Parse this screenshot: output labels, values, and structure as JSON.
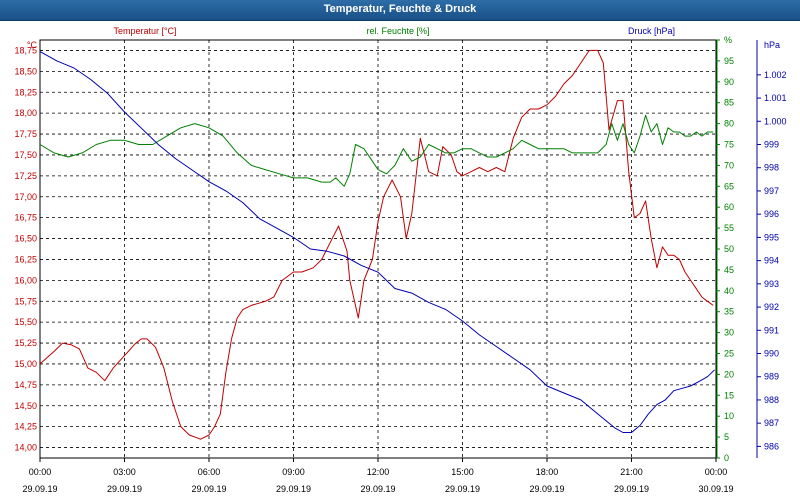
{
  "window": {
    "title": "Temperatur, Feuchte & Druck"
  },
  "chart_data": {
    "type": "line",
    "title": "Temperatur, Feuchte & Druck",
    "grid": true,
    "x": {
      "ticks": [
        {
          "time": "00:00",
          "date": "29.09.19"
        },
        {
          "time": "03:00",
          "date": "29.09.19"
        },
        {
          "time": "06:00",
          "date": "29.09.19"
        },
        {
          "time": "09:00",
          "date": "29.09.19"
        },
        {
          "time": "12:00",
          "date": "29.09.19"
        },
        {
          "time": "15:00",
          "date": "29.09.19"
        },
        {
          "time": "18:00",
          "date": "29.09.19"
        },
        {
          "time": "21:00",
          "date": "29.09.19"
        },
        {
          "time": "00:00",
          "date": "30.09.19"
        }
      ],
      "range_hours": [
        0,
        24
      ]
    },
    "axes": {
      "temperature": {
        "unit_label": "°C",
        "ylim": [
          13.875,
          18.875
        ],
        "ticks": [
          "14,00",
          "14,25",
          "14,50",
          "14,75",
          "15,00",
          "15,25",
          "15,50",
          "15,75",
          "16,00",
          "16,25",
          "16,50",
          "16,75",
          "17,00",
          "17,25",
          "17,50",
          "17,75",
          "18,00",
          "18,25",
          "18,50",
          "18,75"
        ]
      },
      "humidity": {
        "unit_label": "%",
        "ylim": [
          0,
          100
        ],
        "ticks": [
          "0",
          "5",
          "10",
          "15",
          "20",
          "25",
          "30",
          "35",
          "40",
          "45",
          "50",
          "55",
          "60",
          "65",
          "70",
          "75",
          "80",
          "85",
          "90",
          "95",
          "%"
        ]
      },
      "pressure": {
        "unit_label": "hPa",
        "ylim": [
          985.5,
          1003.5
        ],
        "ticks": [
          "986",
          "987",
          "988",
          "989",
          "990",
          "991",
          "992",
          "993",
          "994",
          "995",
          "996",
          "997",
          "998",
          "999",
          "1.000",
          "1.001",
          "1.002"
        ]
      }
    },
    "series": [
      {
        "name": "Temperatur [°C]",
        "axis": "temperature",
        "color": "#c00000",
        "x": [
          0,
          0.5,
          0.8,
          1.1,
          1.4,
          1.7,
          2.0,
          2.3,
          2.6,
          3.0,
          3.4,
          3.6,
          3.8,
          4.1,
          4.4,
          4.7,
          5.0,
          5.3,
          5.7,
          6.0,
          6.2,
          6.4,
          6.6,
          6.8,
          7.0,
          7.2,
          7.5,
          8.0,
          8.3,
          8.6,
          9.0,
          9.3,
          9.7,
          10.0,
          10.3,
          10.6,
          10.9,
          11.0,
          11.3,
          11.5,
          11.8,
          12.0,
          12.2,
          12.5,
          12.8,
          13.0,
          13.2,
          13.5,
          13.8,
          14.1,
          14.3,
          14.6,
          14.8,
          15.0,
          15.3,
          15.6,
          15.9,
          16.2,
          16.5,
          16.8,
          17.1,
          17.4,
          17.7,
          18.0,
          18.3,
          18.6,
          18.9,
          19.2,
          19.5,
          19.8,
          20.0,
          20.2,
          20.5,
          20.7,
          20.9,
          21.1,
          21.3,
          21.5,
          21.7,
          21.9,
          22.1,
          22.3,
          22.5,
          22.7,
          22.9,
          23.1,
          23.3,
          23.5,
          23.7,
          23.9
        ],
        "values": [
          15.0,
          15.15,
          15.25,
          15.23,
          15.18,
          14.95,
          14.9,
          14.8,
          14.95,
          15.1,
          15.25,
          15.3,
          15.3,
          15.2,
          14.95,
          14.55,
          14.25,
          14.15,
          14.1,
          14.15,
          14.25,
          14.4,
          14.9,
          15.3,
          15.55,
          15.65,
          15.7,
          15.75,
          15.8,
          16.0,
          16.1,
          16.1,
          16.15,
          16.25,
          16.45,
          16.65,
          16.35,
          16.0,
          15.55,
          16.0,
          16.25,
          16.7,
          17.0,
          17.2,
          17.0,
          16.5,
          16.8,
          17.7,
          17.3,
          17.25,
          17.6,
          17.5,
          17.3,
          17.25,
          17.3,
          17.35,
          17.3,
          17.35,
          17.3,
          17.7,
          17.95,
          18.05,
          18.05,
          18.1,
          18.2,
          18.35,
          18.45,
          18.6,
          18.75,
          18.75,
          18.6,
          17.8,
          18.15,
          18.15,
          17.3,
          16.75,
          16.8,
          16.95,
          16.5,
          16.15,
          16.4,
          16.3,
          16.3,
          16.25,
          16.1,
          16.0,
          15.9,
          15.8,
          15.75,
          15.7
        ]
      },
      {
        "name": "rel. Feuchte [%]",
        "axis": "humidity",
        "color": "#008000",
        "x": [
          0,
          0.5,
          1.0,
          1.5,
          2.0,
          2.5,
          3.0,
          3.5,
          4.0,
          4.5,
          5.0,
          5.5,
          6.0,
          6.5,
          7.0,
          7.5,
          8.0,
          8.5,
          9.0,
          9.5,
          10.0,
          10.3,
          10.5,
          10.8,
          11.0,
          11.2,
          11.5,
          11.8,
          12.0,
          12.3,
          12.6,
          12.9,
          13.2,
          13.5,
          13.8,
          14.1,
          14.4,
          14.7,
          15.0,
          15.3,
          15.6,
          15.9,
          16.2,
          16.5,
          16.8,
          17.1,
          17.4,
          17.7,
          18.0,
          18.3,
          18.6,
          18.9,
          19.2,
          19.5,
          19.8,
          20.1,
          20.3,
          20.5,
          20.7,
          20.9,
          21.1,
          21.3,
          21.5,
          21.7,
          21.9,
          22.1,
          22.3,
          22.5,
          22.7,
          22.9,
          23.1,
          23.3,
          23.5,
          23.7,
          23.9
        ],
        "values": [
          75,
          73,
          72,
          73,
          75,
          76,
          76,
          75,
          75,
          77,
          79,
          80,
          79,
          77,
          73,
          70,
          69,
          68,
          67,
          67,
          66,
          66,
          67,
          65,
          68,
          75,
          74,
          71,
          69,
          68,
          70,
          74,
          71,
          72,
          75,
          74,
          73,
          73,
          74,
          74,
          73,
          72,
          72,
          73,
          74,
          76,
          75,
          74,
          74,
          74,
          74,
          73,
          73,
          73,
          73,
          75,
          80,
          76,
          80,
          75,
          73,
          77,
          82,
          78,
          80,
          75,
          79,
          78,
          78,
          77,
          77,
          78,
          77,
          78,
          78
        ]
      },
      {
        "name": "Druck [hPa]",
        "axis": "pressure",
        "color": "#0000b0",
        "x": [
          0,
          0.6,
          1.2,
          1.8,
          2.4,
          3.0,
          3.6,
          4.2,
          4.8,
          5.4,
          6.0,
          6.6,
          7.2,
          7.8,
          8.4,
          9.0,
          9.6,
          10.2,
          10.8,
          11.4,
          12.0,
          12.6,
          13.2,
          13.8,
          14.4,
          15.0,
          15.6,
          16.2,
          16.8,
          17.4,
          18.0,
          18.6,
          19.2,
          19.8,
          20.4,
          20.7,
          21.0,
          21.3,
          21.6,
          21.9,
          22.2,
          22.5,
          22.8,
          23.1,
          23.4,
          23.7,
          23.95
        ],
        "values": [
          1003.0,
          1002.6,
          1002.3,
          1001.8,
          1001.2,
          1000.4,
          999.7,
          999.0,
          998.4,
          997.9,
          997.4,
          997.0,
          996.5,
          995.8,
          995.4,
          995.0,
          994.5,
          994.4,
          994.2,
          993.8,
          993.5,
          992.8,
          992.6,
          992.2,
          991.9,
          991.4,
          990.8,
          990.3,
          989.8,
          989.3,
          988.6,
          988.3,
          988.0,
          987.4,
          986.8,
          986.6,
          986.6,
          986.9,
          987.4,
          987.8,
          988.0,
          988.4,
          988.5,
          988.6,
          988.8,
          989.0,
          989.3
        ]
      }
    ]
  }
}
